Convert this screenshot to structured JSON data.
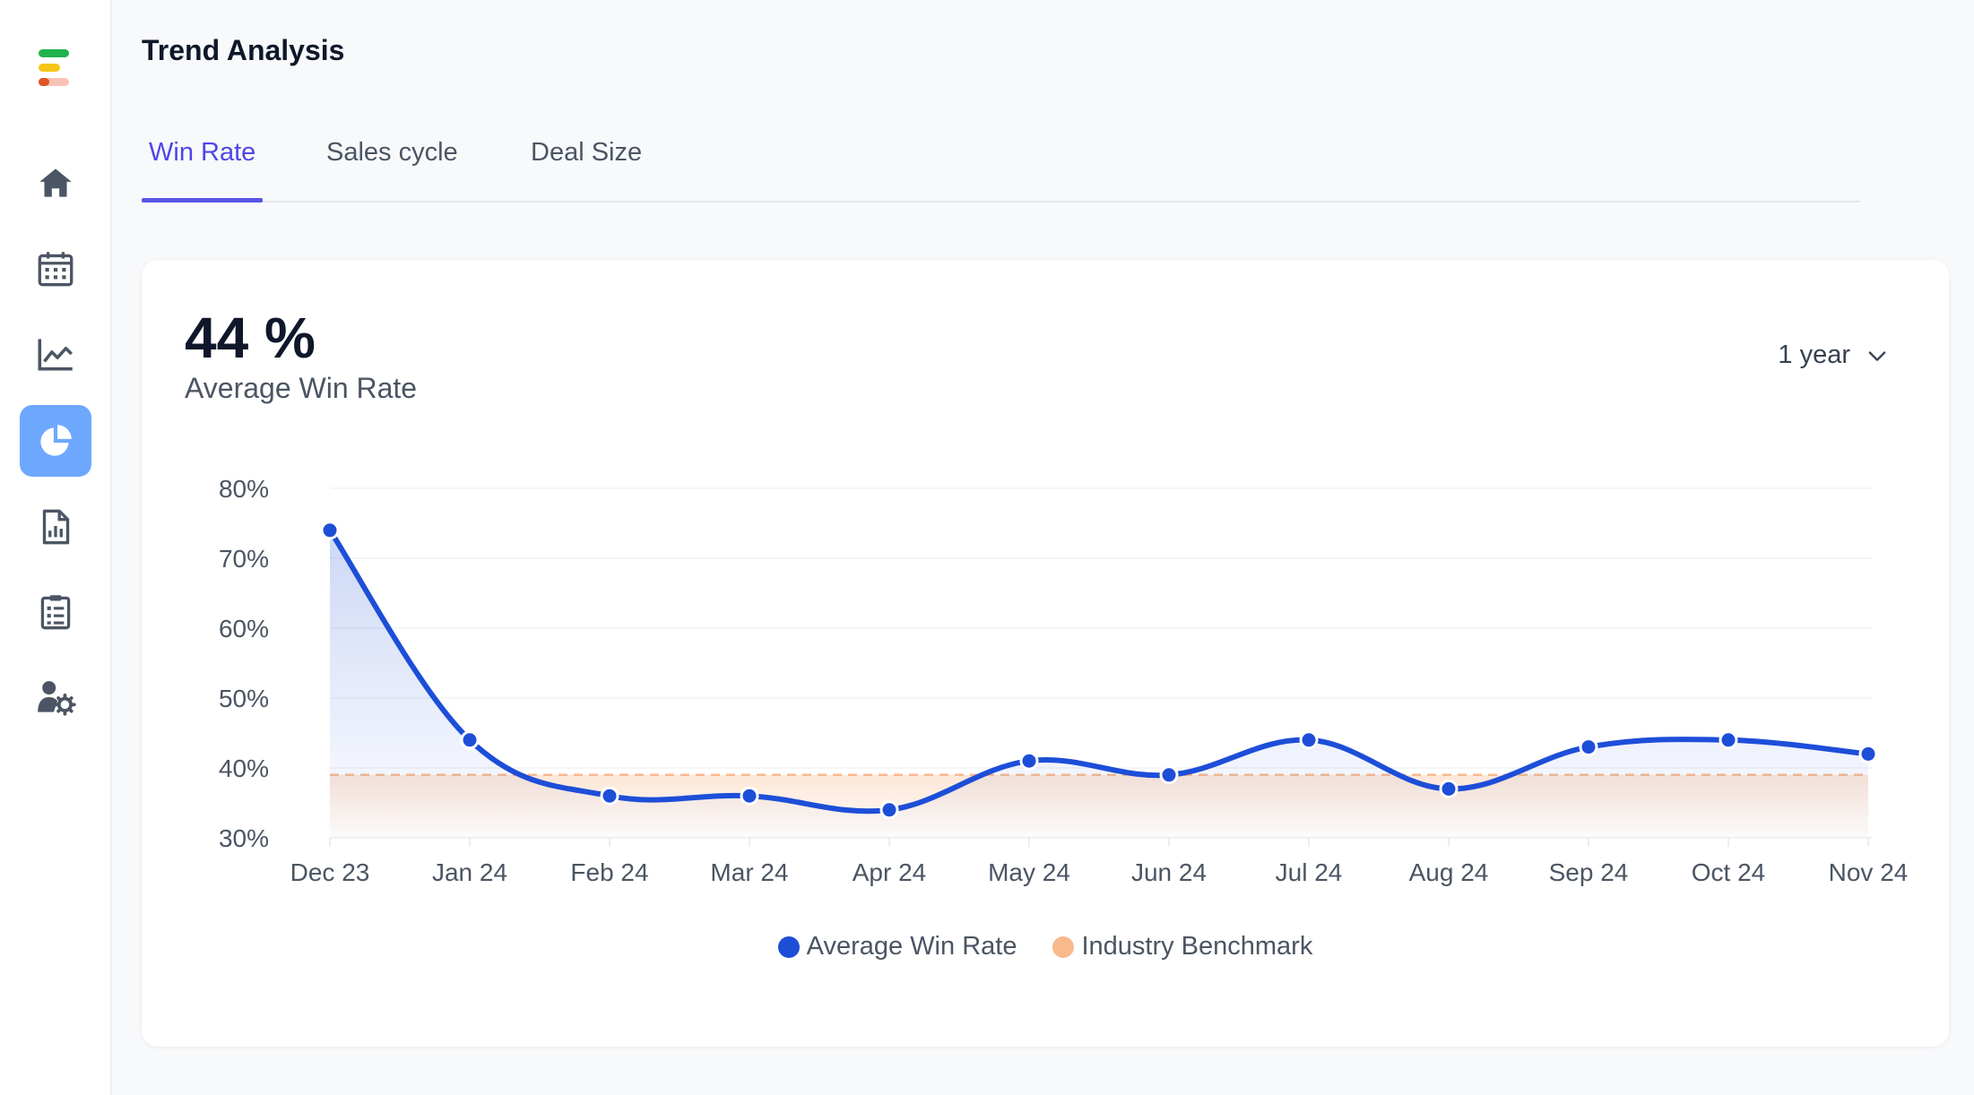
{
  "colors": {
    "accent": "#4f46e5",
    "series_line": "#1d4ed8",
    "benchmark": "#f9b98d",
    "nav_active": "#6ea8fe",
    "logo_green": "#22b24c",
    "logo_yellow": "#f5c518",
    "logo_red": "#e0542a",
    "logo_pink": "#f8c2b4"
  },
  "sidebar": {
    "items": [
      {
        "icon": "home-icon",
        "active": false
      },
      {
        "icon": "calendar-icon",
        "active": false
      },
      {
        "icon": "line-chart-icon",
        "active": false
      },
      {
        "icon": "pie-chart-icon",
        "active": true
      },
      {
        "icon": "report-icon",
        "active": false
      },
      {
        "icon": "clipboard-icon",
        "active": false
      },
      {
        "icon": "user-settings-icon",
        "active": false
      }
    ]
  },
  "header": {
    "title": "Trend Analysis"
  },
  "tabs": [
    {
      "label": "Win Rate",
      "active": true
    },
    {
      "label": "Sales cycle",
      "active": false
    },
    {
      "label": "Deal Size",
      "active": false
    }
  ],
  "summary": {
    "value": "44 %",
    "label": "Average Win Rate",
    "period": "1 year",
    "period_icon": "chevron-down-icon"
  },
  "chart_data": {
    "type": "line",
    "title": "",
    "xlabel": "",
    "ylabel": "",
    "categories": [
      "Dec 23",
      "Jan 24",
      "Feb 24",
      "Mar 24",
      "Apr 24",
      "May 24",
      "Jun 24",
      "Jul 24",
      "Aug 24",
      "Sep 24",
      "Oct 24",
      "Nov 24"
    ],
    "series": [
      {
        "name": "Average Win Rate",
        "values": [
          74,
          44,
          36,
          36,
          34,
          41,
          39,
          44,
          37,
          43,
          44,
          42
        ]
      },
      {
        "name": "Industry Benchmark",
        "values": [
          39,
          39,
          39,
          39,
          39,
          39,
          39,
          39,
          39,
          39,
          39,
          39
        ]
      }
    ],
    "y_ticks": [
      "80%",
      "70%",
      "60%",
      "50%",
      "40%",
      "30%"
    ],
    "ylim": [
      30,
      80
    ],
    "grid": true,
    "legend_position": "bottom"
  }
}
